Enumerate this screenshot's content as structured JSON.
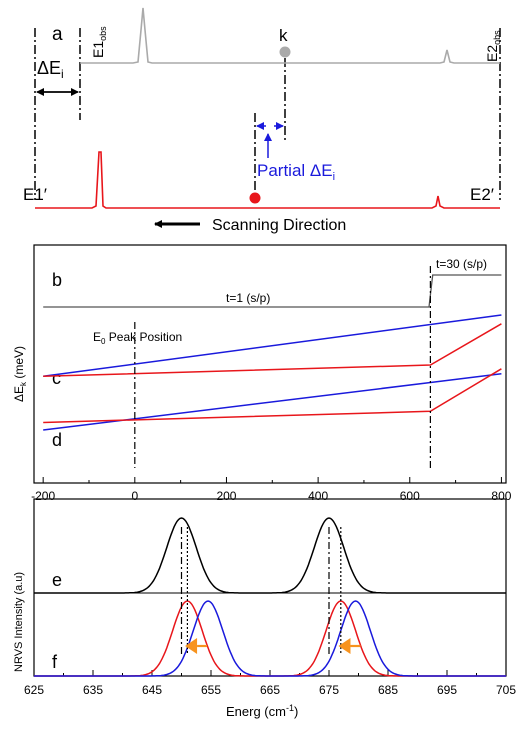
{
  "panel_a": {
    "panel_label": "a",
    "e1obs_main": "E1",
    "e1obs_sub": "obs",
    "e2obs_main": "E2",
    "e2obs_sub": "obs",
    "e1prime": "E1′",
    "e2prime": "E2′",
    "delta_ei_main": "ΔE",
    "delta_ei_sub": "i",
    "k_label": "k",
    "partial_main": "Partial ΔE",
    "partial_sub": "i",
    "scanning_direction": "Scanning Direction",
    "colors": {
      "observed": "#aaaaaa",
      "scan": "#e8161b",
      "annotation": "#1a1adc"
    }
  },
  "panel_bcd": {
    "labels": {
      "b": "b",
      "c": "c",
      "d": "d"
    },
    "t1": "t=1 (s/p)",
    "t30": "t=30 (s/p)",
    "e0_main": "E",
    "e0_sub": "0",
    "e0_rest": " Peak Position",
    "ylabel_main": "ΔE",
    "ylabel_sub": "k",
    "ylabel_rest": " (meV)",
    "xticks": [
      "-200",
      "0",
      "200",
      "400",
      "600",
      "800"
    ]
  },
  "panel_ef": {
    "labels": {
      "e": "e",
      "f": "f"
    },
    "ylabel": "NRVS Intensity (a.u)",
    "xlabel_main": "Energ (cm",
    "xlabel_sup": "-1",
    "xlabel_end": ")",
    "xticks": [
      "625",
      "635",
      "645",
      "655",
      "665",
      "675",
      "685",
      "695",
      "705"
    ]
  },
  "chart_data": [
    {
      "type": "line",
      "panel": "b",
      "x_range": [
        -220,
        810
      ],
      "series": [
        {
          "color": "#555555",
          "points": [
            [
              -200,
              1
            ],
            [
              642,
              1
            ],
            [
              650,
              30
            ],
            [
              800,
              30
            ]
          ]
        }
      ]
    },
    {
      "type": "line",
      "panel": "c-d",
      "xlim": [
        -220,
        810
      ],
      "ylim": [
        0,
        100
      ],
      "x_ticks": [
        -200,
        0,
        200,
        400,
        600,
        800
      ],
      "series": [
        {
          "color": "#1a1adc",
          "points": [
            [
              -200,
              51
            ],
            [
              800,
              100
            ]
          ]
        },
        {
          "color": "#e8161b",
          "points": [
            [
              -200,
              51
            ],
            [
              645,
              60
            ],
            [
              800,
              93
            ]
          ]
        },
        {
          "color": "#1a1adc",
          "points": [
            [
              -200,
              8
            ],
            [
              800,
              53
            ]
          ]
        },
        {
          "color": "#e8161b",
          "points": [
            [
              -200,
              14
            ],
            [
              645,
              23
            ],
            [
              800,
              57
            ]
          ]
        }
      ],
      "reference_lines_x": [
        0,
        645
      ]
    },
    {
      "type": "line",
      "panels": [
        "e",
        "f"
      ],
      "xlim": [
        625,
        705
      ],
      "x_ticks": [
        625,
        635,
        645,
        655,
        665,
        675,
        685,
        695,
        705
      ],
      "series": [
        {
          "color": "#000000",
          "peaks": [
            650,
            675
          ],
          "width": 2.5
        },
        {
          "color": "#e8161b",
          "peaks": [
            651,
            677
          ],
          "width": 2.5
        },
        {
          "color": "#1a1adc",
          "peaks": [
            654.5,
            679.5
          ],
          "width": 2.5
        }
      ],
      "reference_lines_x": [
        650,
        651,
        675,
        677
      ],
      "arrow_color": "#f7931e"
    }
  ]
}
